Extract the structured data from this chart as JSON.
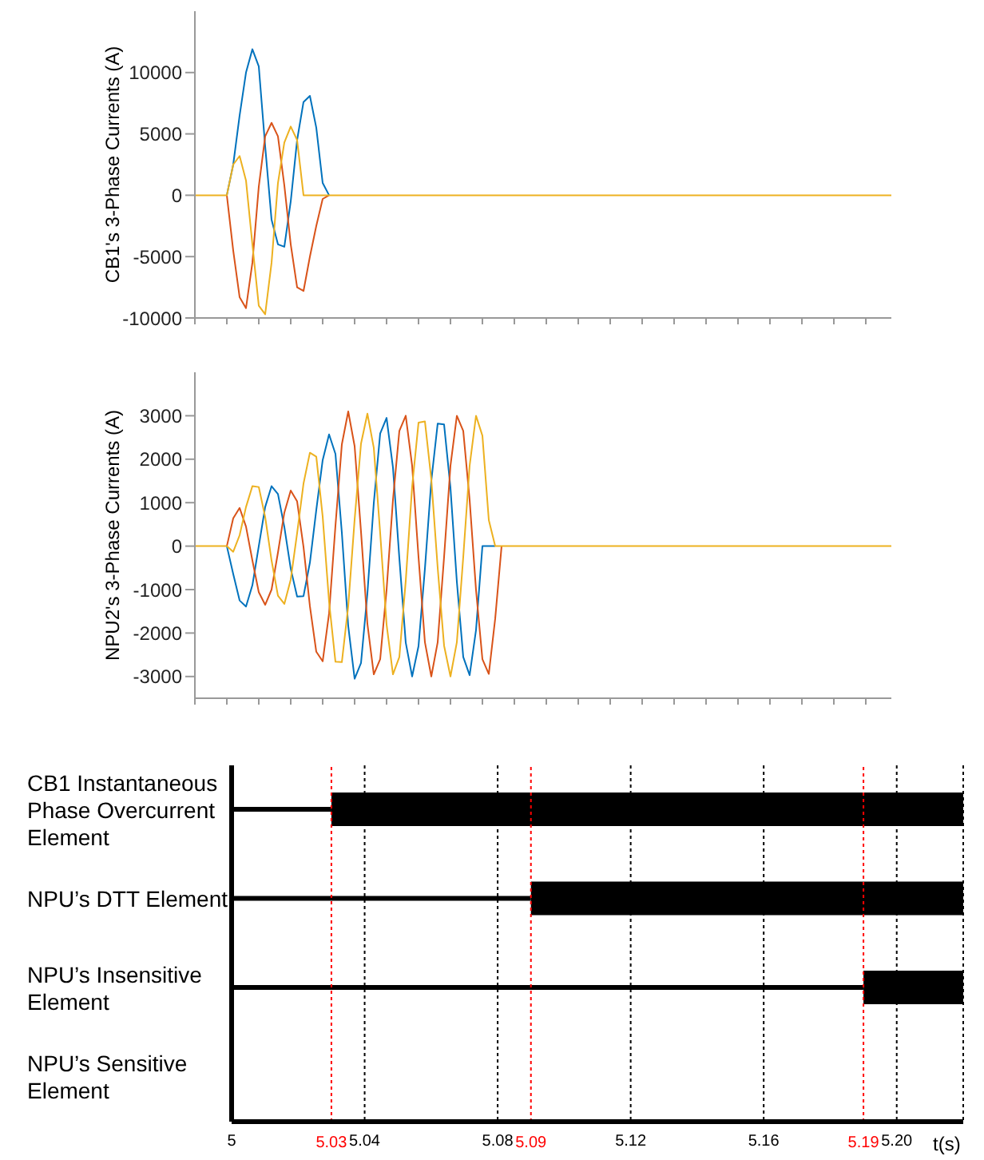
{
  "chart_data": [
    {
      "type": "line",
      "ylabel": "CB1's 3-Phase Currents (A)",
      "tick_labels": "y",
      "ylim": [
        -10000,
        15000
      ],
      "yticks": [
        -10000,
        -5000,
        0,
        5000,
        10000
      ],
      "categories": [
        null,
        null,
        null,
        null,
        null,
        null,
        null,
        null,
        null,
        null,
        null,
        null,
        null,
        null,
        null,
        null,
        null,
        null,
        null,
        null,
        null,
        null,
        null,
        null,
        null,
        null,
        null,
        null,
        null,
        null,
        null,
        null,
        null,
        null,
        null,
        null,
        null,
        null,
        null,
        null,
        null,
        null,
        null,
        null,
        null,
        null,
        null,
        null,
        null,
        null,
        null,
        null,
        null,
        null,
        null,
        null,
        null,
        null,
        null,
        null,
        null,
        null,
        null,
        null,
        null,
        null,
        null,
        null,
        null,
        null,
        null,
        null,
        null,
        null,
        null,
        null,
        null,
        null,
        null,
        null,
        null,
        null,
        null,
        null,
        null,
        null,
        null,
        null,
        null,
        null,
        null,
        null,
        null,
        null,
        null,
        null,
        null,
        null,
        null,
        null,
        null,
        null,
        null,
        null,
        null,
        null,
        null,
        null,
        null,
        null
      ],
      "series": [
        {
          "color": "#0072bd",
          "values": [
            null,
            null,
            null,
            null,
            null,
            0,
            2500,
            6500,
            10000,
            11900,
            10500,
            4000,
            -2000,
            -4000,
            -4200,
            -500,
            4500,
            7600,
            8100,
            5500,
            1000,
            0,
            null,
            null,
            null,
            null,
            null,
            null,
            null,
            null,
            null,
            null,
            null,
            null,
            null,
            null,
            null,
            null,
            null,
            null,
            null,
            null,
            null,
            null,
            null,
            null,
            null,
            null,
            null,
            null,
            null,
            null,
            null,
            null,
            null,
            null,
            null,
            null,
            null,
            null,
            null,
            null,
            null,
            null,
            null,
            null,
            null,
            null,
            null,
            null,
            null,
            null,
            null,
            null,
            null,
            null,
            null,
            null,
            null,
            null,
            null,
            null,
            null,
            null,
            null,
            null,
            null,
            null,
            null,
            null,
            null,
            null,
            null,
            null,
            null,
            null,
            null,
            null,
            null,
            null,
            null,
            null,
            null,
            null,
            null,
            null,
            null,
            null,
            null,
            null
          ]
        },
        {
          "color": "#d95319",
          "values": [
            null,
            null,
            null,
            null,
            null,
            0,
            -4500,
            -8300,
            -9200,
            -5500,
            700,
            4800,
            5900,
            4800,
            800,
            -4000,
            -7500,
            -7800,
            -5000,
            -2500,
            -300,
            0,
            null,
            null,
            null,
            null,
            null,
            null,
            null,
            null,
            null,
            null,
            null,
            null,
            null,
            null,
            null,
            null,
            null,
            null,
            null,
            null,
            null,
            null,
            null,
            null,
            null,
            null,
            null,
            null,
            null,
            null,
            null,
            null,
            null,
            null,
            null,
            null,
            null,
            null,
            null,
            null,
            null,
            null,
            null,
            null,
            null,
            null,
            null,
            null,
            null,
            null,
            null,
            null,
            null,
            null,
            null,
            null,
            null,
            null,
            null,
            null,
            null,
            null,
            null,
            null,
            null,
            null,
            null,
            null,
            null,
            null,
            null,
            null,
            null,
            null,
            null,
            null,
            null,
            null,
            null,
            null,
            null,
            null,
            null,
            null,
            null,
            null,
            null,
            null
          ]
        },
        {
          "color": "#edb120",
          "values": [
            0,
            0,
            0,
            0,
            0,
            0,
            2500,
            3200,
            1200,
            -4000,
            -9000,
            -9700,
            -5500,
            1000,
            4300,
            5600,
            4500,
            0,
            0,
            0,
            0,
            0,
            0,
            0,
            0,
            0,
            0,
            0,
            0,
            0,
            0,
            0,
            0,
            0,
            0,
            0,
            0,
            0,
            0,
            0,
            0,
            0,
            0,
            0,
            0,
            0,
            0,
            0,
            0,
            0,
            0,
            0,
            0,
            0,
            0,
            0,
            0,
            0,
            0,
            0,
            0,
            0,
            0,
            0,
            0,
            0,
            0,
            0,
            0,
            0,
            0,
            0,
            0,
            0,
            0,
            0,
            0,
            0,
            0,
            0,
            0,
            0,
            0,
            0,
            0,
            0,
            0,
            0,
            0,
            0,
            0,
            0,
            0,
            0,
            0,
            0,
            0,
            0,
            0,
            0,
            0,
            0,
            0,
            0,
            0,
            0,
            0,
            0,
            0,
            0
          ]
        }
      ]
    },
    {
      "type": "line",
      "ylabel": "NPU2's 3-Phase Currents (A)",
      "tick_labels": "y",
      "ylim": [
        -3500,
        4000
      ],
      "yticks": [
        -3000,
        -2000,
        -1000,
        0,
        1000,
        2000,
        3000
      ],
      "categories": [
        null,
        null,
        null,
        null,
        null,
        null,
        null,
        null,
        null,
        null,
        null,
        null,
        null,
        null,
        null,
        null,
        null,
        null,
        null,
        null,
        null,
        null,
        null,
        null,
        null,
        null,
        null,
        null,
        null,
        null,
        null,
        null,
        null,
        null,
        null,
        null,
        null,
        null,
        null,
        null,
        null,
        null,
        null,
        null,
        null,
        null,
        null,
        null,
        null,
        null,
        null,
        null,
        null,
        null,
        null,
        null,
        null,
        null,
        null,
        null,
        null,
        null,
        null,
        null,
        null,
        null,
        null,
        null,
        null,
        null,
        null,
        null,
        null,
        null,
        null,
        null,
        null,
        null,
        null,
        null,
        null,
        null,
        null,
        null,
        null,
        null,
        null,
        null,
        null,
        null,
        null,
        null,
        null,
        null,
        null,
        null,
        null,
        null,
        null,
        null,
        null,
        null,
        null,
        null,
        null,
        null,
        null,
        null,
        null,
        null
      ],
      "series": [
        {
          "color": "#0072bd",
          "values": [
            null,
            null,
            null,
            null,
            null,
            0,
            -640,
            -1250,
            -1390,
            -900,
            0,
            900,
            1380,
            1200,
            440,
            -520,
            -1160,
            -1150,
            -380,
            830,
            1980,
            2570,
            2120,
            310,
            -1840,
            -3050,
            -2690,
            -1090,
            990,
            2590,
            2950,
            1810,
            -280,
            -2220,
            -3000,
            -2300,
            -520,
            1500,
            2820,
            2800,
            1340,
            -820,
            -2550,
            -2970,
            -1930,
            0,
            0,
            0,
            null,
            null,
            null,
            null,
            null,
            null,
            null,
            null,
            null,
            null,
            null,
            null,
            null,
            null,
            null,
            null,
            null,
            null,
            null,
            null,
            null,
            null,
            null,
            null,
            null,
            null,
            null,
            null,
            null,
            null,
            null,
            null,
            null,
            null,
            null,
            null,
            null,
            null,
            null,
            null,
            null,
            null,
            null,
            null,
            null,
            null,
            null,
            null,
            null,
            null,
            null,
            null,
            null,
            null,
            null,
            null,
            null,
            null,
            null,
            null,
            null,
            null
          ]
        },
        {
          "color": "#d95319",
          "values": [
            null,
            null,
            null,
            null,
            null,
            0,
            640,
            880,
            450,
            -330,
            -1060,
            -1350,
            -1000,
            -150,
            770,
            1280,
            1030,
            -20,
            -1380,
            -2430,
            -2650,
            -1550,
            470,
            2340,
            3100,
            2300,
            330,
            -1790,
            -2950,
            -2600,
            -1010,
            1060,
            2650,
            3000,
            1850,
            -250,
            -2210,
            -3000,
            -2210,
            -250,
            1850,
            3000,
            2650,
            1060,
            -1010,
            -2600,
            -2940,
            -1670,
            0,
            null,
            null,
            null,
            null,
            null,
            null,
            null,
            null,
            null,
            null,
            null,
            null,
            null,
            null,
            null,
            null,
            null,
            null,
            null,
            null,
            null,
            null,
            null,
            null,
            null,
            null,
            null,
            null,
            null,
            null,
            null,
            null,
            null,
            null,
            null,
            null,
            null,
            null,
            null,
            null,
            null,
            null,
            null,
            null,
            null,
            null,
            null,
            null,
            null,
            null,
            null,
            null,
            null,
            null,
            null,
            null,
            null,
            null,
            null,
            null,
            null
          ]
        },
        {
          "color": "#edb120",
          "values": [
            0,
            0,
            0,
            0,
            0,
            0,
            -130,
            250,
            900,
            1380,
            1360,
            670,
            -330,
            -1140,
            -1330,
            -770,
            300,
            1440,
            2150,
            2060,
            680,
            -1280,
            -2660,
            -2670,
            -1380,
            610,
            2360,
            3050,
            2260,
            300,
            -1800,
            -2950,
            -2550,
            -800,
            1370,
            2840,
            2870,
            1540,
            -500,
            -2290,
            -3000,
            -2210,
            -250,
            1850,
            3000,
            2540,
            600,
            0,
            0,
            0,
            0,
            0,
            0,
            0,
            0,
            0,
            0,
            0,
            0,
            0,
            0,
            0,
            0,
            0,
            0,
            0,
            0,
            0,
            0,
            0,
            0,
            0,
            0,
            0,
            0,
            0,
            0,
            0,
            0,
            0,
            0,
            0,
            0,
            0,
            0,
            0,
            0,
            0,
            0,
            0,
            0,
            0,
            0,
            0,
            0,
            0,
            0,
            0,
            0,
            0,
            0,
            0,
            0,
            0,
            0,
            0,
            0,
            0,
            0,
            0
          ]
        }
      ]
    },
    {
      "type": "bar",
      "orientation": "horizontal",
      "xlabel": "t(s)",
      "xlim": [
        5,
        5.22
      ],
      "xticks": [
        5,
        5.04,
        5.08,
        5.12,
        5.16,
        {
          "value": 5.2,
          "label": "5.20"
        }
      ],
      "grid": "x",
      "categories": [
        "CB1 Instantaneous Phase Overcurrent Element",
        "NPU’s DTT Element",
        "NPU’s Insensitive Element",
        "NPU’s Sensitive Element"
      ],
      "series": [
        {
          "color": "#000000",
          "base": [
            5,
            5,
            5,
            null
          ],
          "values": [
            0.03,
            0.09,
            0.19,
            null
          ]
        },
        {
          "color": "#000000",
          "base": [
            5.03,
            5.09,
            5.19,
            null
          ],
          "values": [
            0.19,
            0.13,
            0.03,
            null
          ]
        }
      ],
      "ref_lines": [
        {
          "axis": "x",
          "value": 5.03,
          "label": "5.03",
          "color": "#ff0000",
          "line_style": "dotted"
        },
        {
          "axis": "x",
          "value": 5.09,
          "label": "5.09",
          "color": "#ff0000",
          "line_style": "dotted"
        },
        {
          "axis": "x",
          "value": 5.19,
          "label": "5.19",
          "color": "#ff0000",
          "line_style": "dotted"
        }
      ]
    }
  ]
}
